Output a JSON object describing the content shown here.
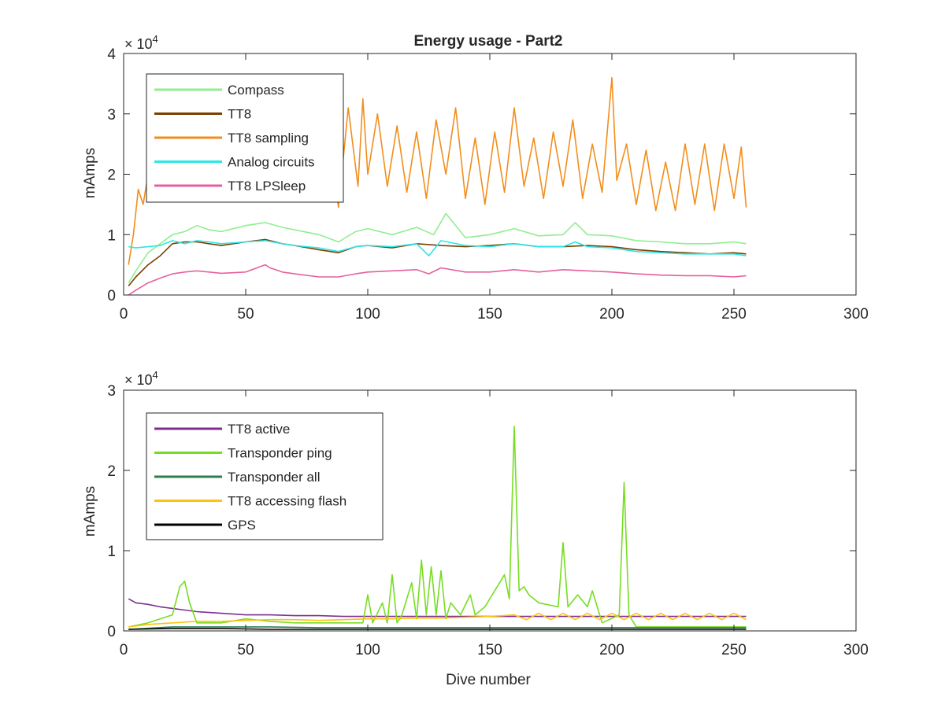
{
  "chart_data": [
    {
      "type": "line",
      "title": "Energy usage - Part2",
      "xlabel": "",
      "ylabel": "mAmps",
      "xlim": [
        0,
        300
      ],
      "ylim": [
        0,
        4
      ],
      "y_multiplier": "× 10",
      "y_multiplier_exp": "4",
      "xticks": [
        "0",
        "50",
        "100",
        "150",
        "200",
        "250",
        "300"
      ],
      "yticks": [
        "0",
        "1",
        "2",
        "3",
        "4"
      ],
      "legend_position": "top-left",
      "grid": false,
      "series": [
        {
          "name": "Compass",
          "color": "#90ee90",
          "x": [
            2,
            5,
            10,
            15,
            20,
            25,
            30,
            35,
            40,
            50,
            58,
            65,
            70,
            80,
            88,
            95,
            100,
            110,
            120,
            127,
            132,
            140,
            150,
            160,
            170,
            180,
            185,
            190,
            200,
            210,
            220,
            230,
            240,
            250,
            255
          ],
          "y": [
            0.2,
            0.4,
            0.7,
            0.85,
            1.0,
            1.05,
            1.15,
            1.08,
            1.05,
            1.15,
            1.2,
            1.12,
            1.08,
            1.0,
            0.88,
            1.05,
            1.1,
            1.0,
            1.12,
            1.0,
            1.35,
            0.95,
            1.0,
            1.1,
            0.98,
            1.0,
            1.2,
            1.0,
            0.98,
            0.9,
            0.88,
            0.85,
            0.85,
            0.88,
            0.85
          ]
        },
        {
          "name": "TT8",
          "color": "#7b3f00",
          "x": [
            2,
            5,
            10,
            15,
            20,
            25,
            30,
            35,
            40,
            50,
            58,
            65,
            70,
            80,
            88,
            95,
            100,
            110,
            120,
            130,
            140,
            150,
            160,
            170,
            180,
            190,
            200,
            210,
            220,
            230,
            240,
            250,
            255
          ],
          "y": [
            0.15,
            0.3,
            0.5,
            0.65,
            0.85,
            0.88,
            0.88,
            0.85,
            0.82,
            0.88,
            0.92,
            0.85,
            0.82,
            0.75,
            0.7,
            0.8,
            0.82,
            0.78,
            0.85,
            0.82,
            0.8,
            0.82,
            0.85,
            0.8,
            0.8,
            0.82,
            0.8,
            0.75,
            0.72,
            0.7,
            0.68,
            0.7,
            0.68
          ]
        },
        {
          "name": "TT8 sampling",
          "color": "#f28e1c",
          "x": [
            2,
            4,
            6,
            8,
            10,
            12,
            14,
            16,
            18,
            20,
            22,
            25,
            28,
            32,
            36,
            40,
            44,
            48,
            52,
            56,
            60,
            64,
            68,
            72,
            76,
            80,
            84,
            88,
            92,
            96,
            98,
            100,
            104,
            108,
            112,
            116,
            120,
            124,
            128,
            132,
            136,
            140,
            144,
            148,
            152,
            156,
            160,
            164,
            168,
            172,
            176,
            180,
            184,
            188,
            192,
            196,
            200,
            202,
            206,
            210,
            214,
            218,
            222,
            226,
            230,
            234,
            238,
            242,
            246,
            250,
            253,
            255
          ],
          "y": [
            0.5,
            1.0,
            1.75,
            1.5,
            2.0,
            1.8,
            2.05,
            1.7,
            2.2,
            1.85,
            2.4,
            2.1,
            2.6,
            2.2,
            2.8,
            2.3,
            2.6,
            2.0,
            2.7,
            2.1,
            2.6,
            1.9,
            2.4,
            2.0,
            2.5,
            2.0,
            2.7,
            1.45,
            3.1,
            1.8,
            3.25,
            2.0,
            3.0,
            1.8,
            2.8,
            1.7,
            2.7,
            1.6,
            2.9,
            2.0,
            3.1,
            1.6,
            2.6,
            1.5,
            2.7,
            1.7,
            3.1,
            1.8,
            2.6,
            1.6,
            2.7,
            1.8,
            2.9,
            1.6,
            2.5,
            1.7,
            3.6,
            1.9,
            2.5,
            1.5,
            2.4,
            1.4,
            2.2,
            1.4,
            2.5,
            1.5,
            2.5,
            1.4,
            2.5,
            1.6,
            2.45,
            1.45
          ]
        },
        {
          "name": "Analog circuits",
          "color": "#2ee6e6",
          "x": [
            2,
            5,
            10,
            15,
            20,
            25,
            30,
            35,
            40,
            50,
            58,
            65,
            70,
            80,
            88,
            95,
            100,
            110,
            120,
            125,
            130,
            140,
            150,
            160,
            170,
            180,
            185,
            190,
            200,
            210,
            220,
            230,
            240,
            250,
            255
          ],
          "y": [
            0.8,
            0.78,
            0.8,
            0.82,
            0.9,
            0.85,
            0.9,
            0.88,
            0.85,
            0.88,
            0.9,
            0.85,
            0.82,
            0.78,
            0.72,
            0.8,
            0.82,
            0.8,
            0.85,
            0.65,
            0.9,
            0.82,
            0.8,
            0.85,
            0.8,
            0.8,
            0.88,
            0.8,
            0.78,
            0.72,
            0.7,
            0.68,
            0.68,
            0.68,
            0.65
          ]
        },
        {
          "name": "TT8 LPSleep",
          "color": "#e6609e",
          "x": [
            2,
            5,
            10,
            15,
            20,
            25,
            30,
            35,
            40,
            50,
            58,
            60,
            65,
            70,
            80,
            88,
            95,
            100,
            110,
            120,
            125,
            130,
            140,
            150,
            160,
            170,
            180,
            190,
            200,
            210,
            220,
            230,
            240,
            250,
            255
          ],
          "y": [
            0.0,
            0.08,
            0.2,
            0.28,
            0.35,
            0.38,
            0.4,
            0.38,
            0.36,
            0.38,
            0.5,
            0.45,
            0.38,
            0.35,
            0.3,
            0.3,
            0.35,
            0.38,
            0.4,
            0.42,
            0.35,
            0.45,
            0.38,
            0.38,
            0.42,
            0.38,
            0.42,
            0.4,
            0.38,
            0.35,
            0.33,
            0.32,
            0.32,
            0.3,
            0.32
          ]
        }
      ]
    },
    {
      "type": "line",
      "title": "",
      "xlabel": "Dive number",
      "ylabel": "mAmps",
      "xlim": [
        0,
        300
      ],
      "ylim": [
        0,
        3
      ],
      "y_multiplier": "× 10",
      "y_multiplier_exp": "4",
      "xticks": [
        "0",
        "50",
        "100",
        "150",
        "200",
        "250",
        "300"
      ],
      "yticks": [
        "0",
        "1",
        "2",
        "3"
      ],
      "legend_position": "top-left",
      "grid": false,
      "series": [
        {
          "name": "TT8 active",
          "color": "#7e2f8e",
          "x": [
            2,
            5,
            10,
            15,
            20,
            25,
            30,
            40,
            50,
            60,
            70,
            80,
            90,
            100,
            110,
            120,
            130,
            140,
            150,
            160,
            170,
            180,
            190,
            200,
            210,
            220,
            230,
            240,
            250,
            255
          ],
          "y": [
            0.4,
            0.35,
            0.33,
            0.3,
            0.28,
            0.26,
            0.24,
            0.22,
            0.2,
            0.2,
            0.19,
            0.19,
            0.18,
            0.18,
            0.18,
            0.18,
            0.18,
            0.18,
            0.18,
            0.18,
            0.18,
            0.18,
            0.18,
            0.18,
            0.18,
            0.18,
            0.18,
            0.18,
            0.18,
            0.18
          ]
        },
        {
          "name": "Transponder ping",
          "color": "#77dd22",
          "x": [
            2,
            10,
            20,
            23,
            25,
            27,
            30,
            40,
            50,
            60,
            70,
            80,
            90,
            98,
            100,
            102,
            106,
            108,
            110,
            112,
            114,
            118,
            120,
            122,
            124,
            126,
            128,
            130,
            132,
            134,
            138,
            142,
            144,
            148,
            156,
            158,
            160,
            162,
            164,
            166,
            170,
            178,
            180,
            182,
            186,
            190,
            192,
            196,
            203,
            205,
            207,
            210,
            220,
            230,
            240,
            250,
            255
          ],
          "y": [
            0.05,
            0.1,
            0.2,
            0.55,
            0.62,
            0.35,
            0.1,
            0.1,
            0.15,
            0.12,
            0.1,
            0.1,
            0.1,
            0.1,
            0.45,
            0.1,
            0.35,
            0.1,
            0.7,
            0.1,
            0.2,
            0.6,
            0.15,
            0.88,
            0.2,
            0.8,
            0.2,
            0.75,
            0.15,
            0.35,
            0.2,
            0.45,
            0.2,
            0.3,
            0.7,
            0.4,
            2.55,
            0.5,
            0.55,
            0.45,
            0.35,
            0.3,
            1.1,
            0.3,
            0.45,
            0.3,
            0.5,
            0.1,
            0.2,
            1.85,
            0.2,
            0.05,
            0.05,
            0.05,
            0.05,
            0.05,
            0.05
          ]
        },
        {
          "name": "Transponder all",
          "color": "#2e7d4f",
          "x": [
            2,
            20,
            40,
            60,
            80,
            100,
            120,
            140,
            160,
            180,
            200,
            220,
            240,
            255
          ],
          "y": [
            0.02,
            0.05,
            0.05,
            0.05,
            0.04,
            0.04,
            0.04,
            0.04,
            0.04,
            0.04,
            0.04,
            0.04,
            0.04,
            0.04
          ]
        },
        {
          "name": "TT8 accessing flash",
          "color": "#ffc20e",
          "x": [
            2,
            10,
            20,
            30,
            40,
            50,
            60,
            70,
            80,
            90,
            100,
            110,
            120,
            130,
            140,
            150,
            160,
            165,
            170,
            175,
            180,
            185,
            190,
            195,
            200,
            205,
            210,
            215,
            220,
            225,
            230,
            235,
            240,
            245,
            250,
            255
          ],
          "y": [
            0.05,
            0.08,
            0.1,
            0.12,
            0.12,
            0.13,
            0.14,
            0.14,
            0.13,
            0.14,
            0.15,
            0.15,
            0.16,
            0.16,
            0.17,
            0.18,
            0.2,
            0.14,
            0.22,
            0.14,
            0.22,
            0.14,
            0.22,
            0.14,
            0.22,
            0.14,
            0.22,
            0.14,
            0.22,
            0.14,
            0.22,
            0.14,
            0.22,
            0.14,
            0.22,
            0.14
          ]
        },
        {
          "name": "GPS",
          "color": "#000000",
          "x": [
            2,
            20,
            40,
            60,
            80,
            100,
            120,
            140,
            160,
            180,
            200,
            220,
            240,
            255
          ],
          "y": [
            0.02,
            0.03,
            0.03,
            0.02,
            0.02,
            0.02,
            0.02,
            0.02,
            0.02,
            0.02,
            0.02,
            0.02,
            0.02,
            0.02
          ]
        }
      ]
    }
  ]
}
